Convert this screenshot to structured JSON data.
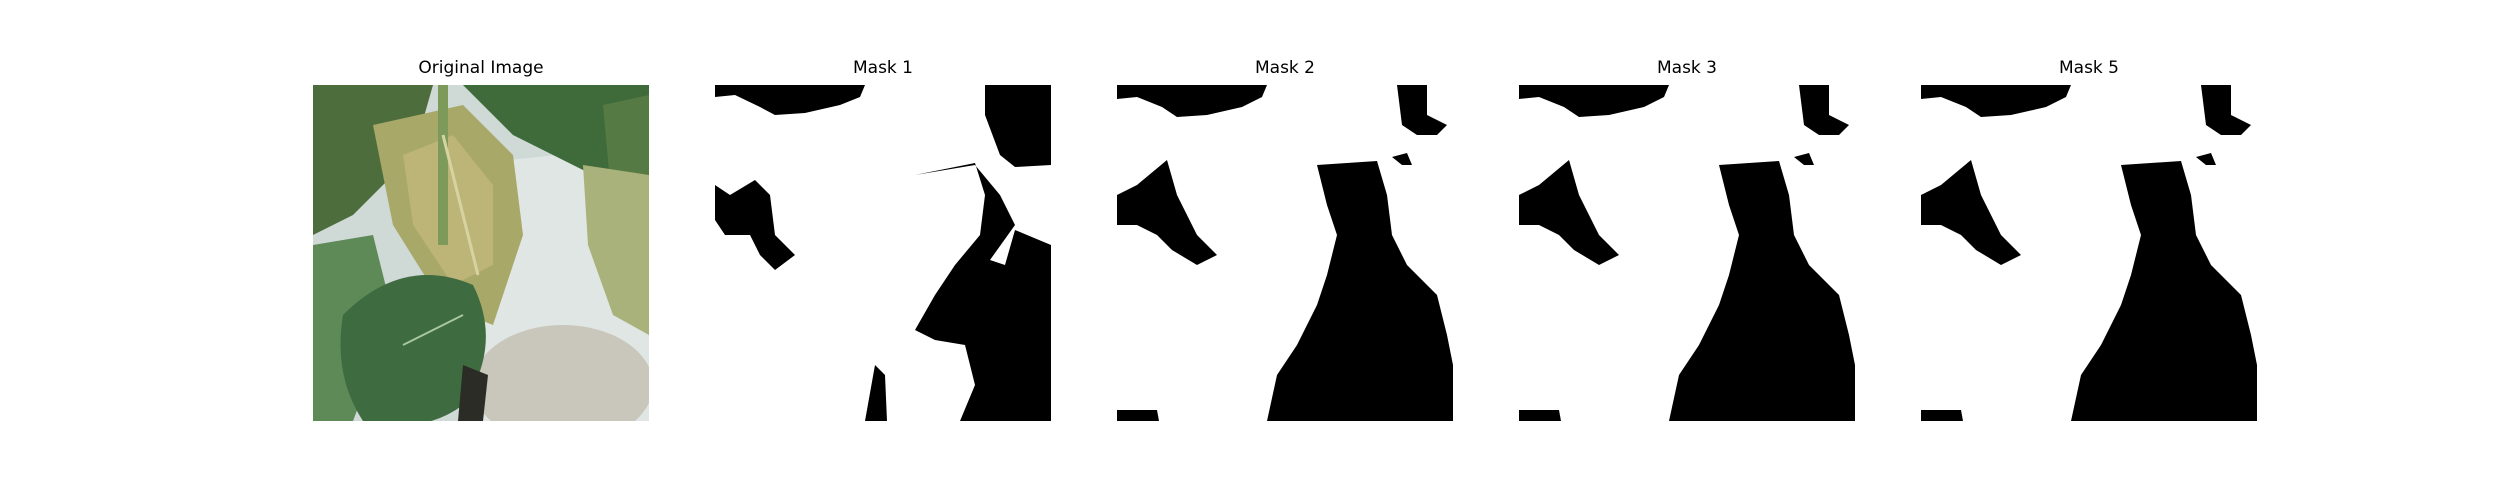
{
  "panels": [
    {
      "title": "Original Image",
      "kind": "photo"
    },
    {
      "title": "Mask 1",
      "kind": "mask"
    },
    {
      "title": "Mask 2",
      "kind": "mask"
    },
    {
      "title": "Mask 3",
      "kind": "mask"
    },
    {
      "title": "Mask 5",
      "kind": "mask"
    }
  ],
  "colors": {
    "mask_foreground": "#ffffff",
    "mask_background": "#000000",
    "leaf_green": "#3f6a3a",
    "leaf_yellow": "#b8b06a",
    "wall": "#dfe6e4"
  }
}
